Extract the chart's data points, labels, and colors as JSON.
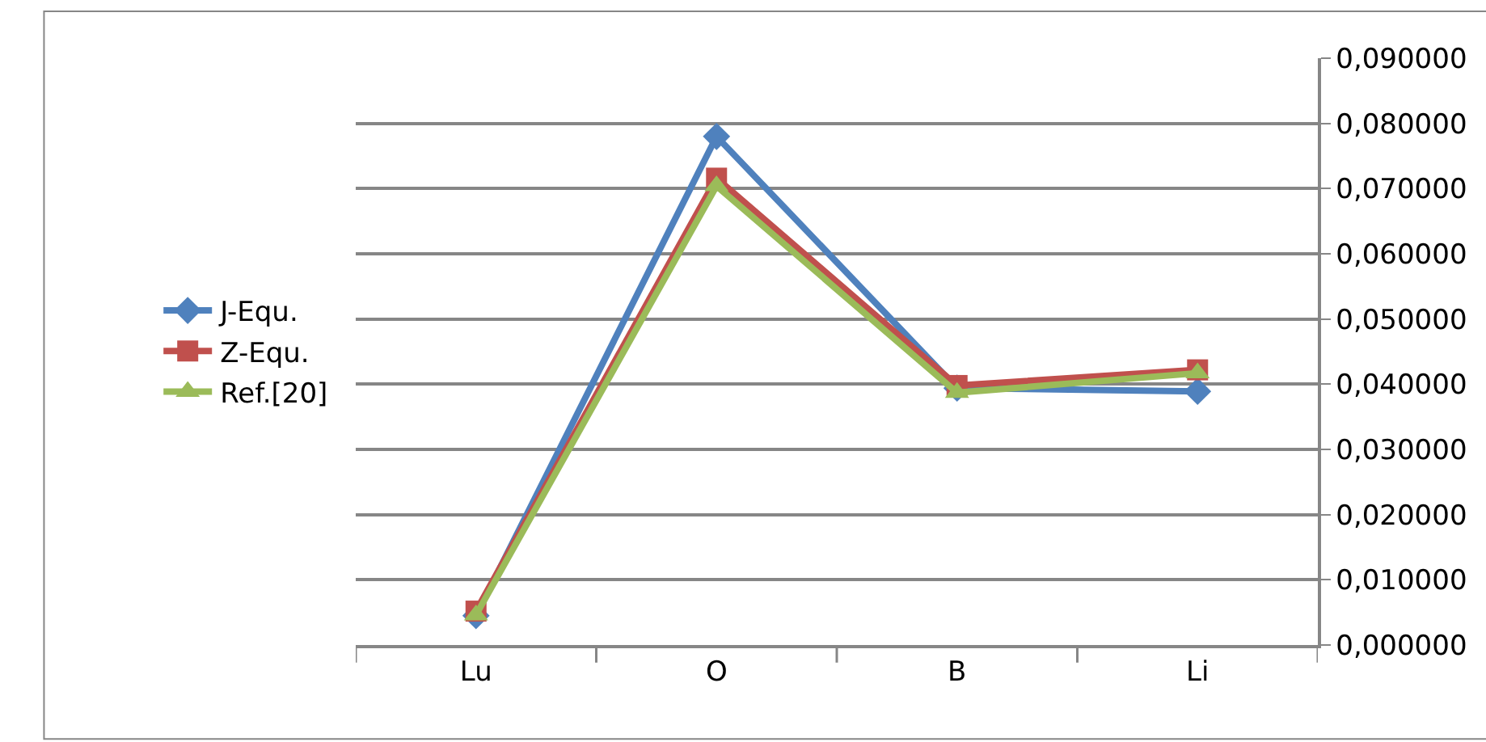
{
  "chart_data": {
    "type": "line",
    "categories": [
      "Lu",
      "O",
      "B",
      "Li"
    ],
    "series": [
      {
        "name": "J-Equ.",
        "color": "#4f81bd",
        "marker": "diamond",
        "values": [
          0.0045,
          0.078,
          0.0394,
          0.0389
        ]
      },
      {
        "name": "Z-Equ.",
        "color": "#c0504d",
        "marker": "square",
        "values": [
          0.0052,
          0.0716,
          0.0398,
          0.0422
        ]
      },
      {
        "name": "Ref.[20]",
        "color": "#9bbb59",
        "marker": "triangle",
        "values": [
          0.0046,
          0.0704,
          0.0387,
          0.0417
        ]
      }
    ],
    "ylim": [
      0,
      0.09
    ],
    "yticks": [
      {
        "value": 0,
        "label": "0,000000"
      },
      {
        "value": 0.01,
        "label": "0,010000"
      },
      {
        "value": 0.02,
        "label": "0,020000"
      },
      {
        "value": 0.03,
        "label": "0,030000"
      },
      {
        "value": 0.04,
        "label": "0,040000"
      },
      {
        "value": 0.05,
        "label": "0,050000"
      },
      {
        "value": 0.06,
        "label": "0,060000"
      },
      {
        "value": 0.07,
        "label": "0,070000"
      },
      {
        "value": 0.08,
        "label": "0,080000"
      },
      {
        "value": 0.09,
        "label": "0,090000"
      }
    ],
    "grid": "y",
    "legend": "left",
    "line_style": "solid"
  }
}
